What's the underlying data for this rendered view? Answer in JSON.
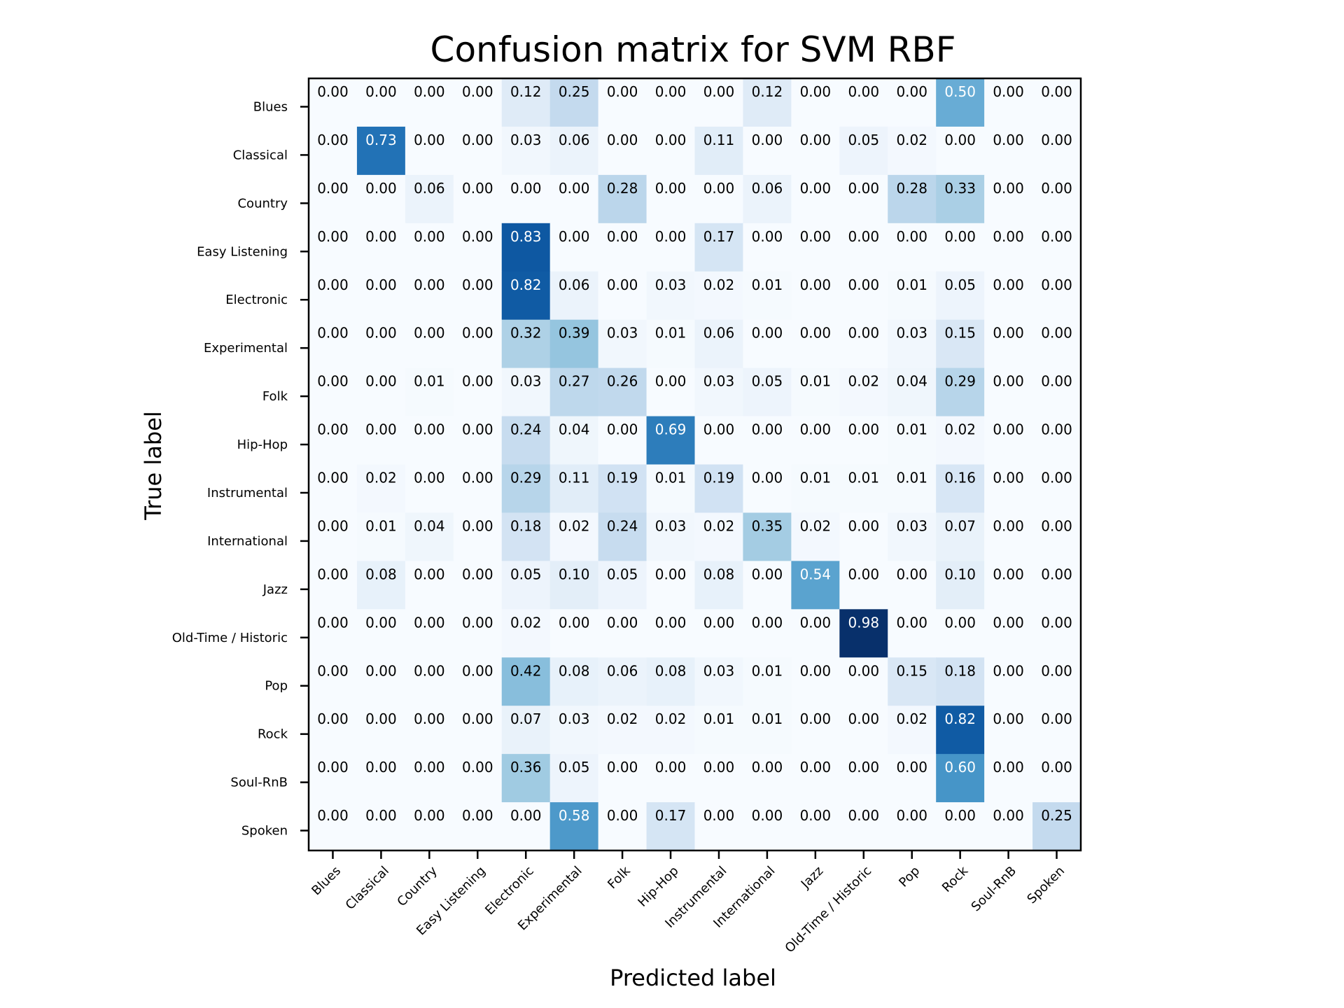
{
  "chart_data": {
    "type": "heatmap",
    "title": "Confusion matrix for SVM RBF",
    "xlabel": "Predicted label",
    "ylabel": "True label",
    "colormap": "Blues",
    "value_range": [
      0,
      1
    ],
    "labels": [
      "Blues",
      "Classical",
      "Country",
      "Easy Listening",
      "Electronic",
      "Experimental",
      "Folk",
      "Hip-Hop",
      "Instrumental",
      "International",
      "Jazz",
      "Old-Time / Historic",
      "Pop",
      "Rock",
      "Soul-RnB",
      "Spoken"
    ],
    "matrix": [
      [
        0.0,
        0.0,
        0.0,
        0.0,
        0.12,
        0.25,
        0.0,
        0.0,
        0.0,
        0.12,
        0.0,
        0.0,
        0.0,
        0.5,
        0.0,
        0.0
      ],
      [
        0.0,
        0.73,
        0.0,
        0.0,
        0.03,
        0.06,
        0.0,
        0.0,
        0.11,
        0.0,
        0.0,
        0.05,
        0.02,
        0.0,
        0.0,
        0.0
      ],
      [
        0.0,
        0.0,
        0.06,
        0.0,
        0.0,
        0.0,
        0.28,
        0.0,
        0.0,
        0.06,
        0.0,
        0.0,
        0.28,
        0.33,
        0.0,
        0.0
      ],
      [
        0.0,
        0.0,
        0.0,
        0.0,
        0.83,
        0.0,
        0.0,
        0.0,
        0.17,
        0.0,
        0.0,
        0.0,
        0.0,
        0.0,
        0.0,
        0.0
      ],
      [
        0.0,
        0.0,
        0.0,
        0.0,
        0.82,
        0.06,
        0.0,
        0.03,
        0.02,
        0.01,
        0.0,
        0.0,
        0.01,
        0.05,
        0.0,
        0.0
      ],
      [
        0.0,
        0.0,
        0.0,
        0.0,
        0.32,
        0.39,
        0.03,
        0.01,
        0.06,
        0.0,
        0.0,
        0.0,
        0.03,
        0.15,
        0.0,
        0.0
      ],
      [
        0.0,
        0.0,
        0.01,
        0.0,
        0.03,
        0.27,
        0.26,
        0.0,
        0.03,
        0.05,
        0.01,
        0.02,
        0.04,
        0.29,
        0.0,
        0.0
      ],
      [
        0.0,
        0.0,
        0.0,
        0.0,
        0.24,
        0.04,
        0.0,
        0.69,
        0.0,
        0.0,
        0.0,
        0.0,
        0.01,
        0.02,
        0.0,
        0.0
      ],
      [
        0.0,
        0.02,
        0.0,
        0.0,
        0.29,
        0.11,
        0.19,
        0.01,
        0.19,
        0.0,
        0.01,
        0.01,
        0.01,
        0.16,
        0.0,
        0.0
      ],
      [
        0.0,
        0.01,
        0.04,
        0.0,
        0.18,
        0.02,
        0.24,
        0.03,
        0.02,
        0.35,
        0.02,
        0.0,
        0.03,
        0.07,
        0.0,
        0.0
      ],
      [
        0.0,
        0.08,
        0.0,
        0.0,
        0.05,
        0.1,
        0.05,
        0.0,
        0.08,
        0.0,
        0.54,
        0.0,
        0.0,
        0.1,
        0.0,
        0.0
      ],
      [
        0.0,
        0.0,
        0.0,
        0.0,
        0.02,
        0.0,
        0.0,
        0.0,
        0.0,
        0.0,
        0.0,
        0.98,
        0.0,
        0.0,
        0.0,
        0.0
      ],
      [
        0.0,
        0.0,
        0.0,
        0.0,
        0.42,
        0.08,
        0.06,
        0.08,
        0.03,
        0.01,
        0.0,
        0.0,
        0.15,
        0.18,
        0.0,
        0.0
      ],
      [
        0.0,
        0.0,
        0.0,
        0.0,
        0.07,
        0.03,
        0.02,
        0.02,
        0.01,
        0.01,
        0.0,
        0.0,
        0.02,
        0.82,
        0.0,
        0.0
      ],
      [
        0.0,
        0.0,
        0.0,
        0.0,
        0.36,
        0.05,
        0.0,
        0.0,
        0.0,
        0.0,
        0.0,
        0.0,
        0.0,
        0.6,
        0.0,
        0.0
      ],
      [
        0.0,
        0.0,
        0.0,
        0.0,
        0.0,
        0.58,
        0.0,
        0.17,
        0.0,
        0.0,
        0.0,
        0.0,
        0.0,
        0.0,
        0.0,
        0.25
      ]
    ]
  }
}
